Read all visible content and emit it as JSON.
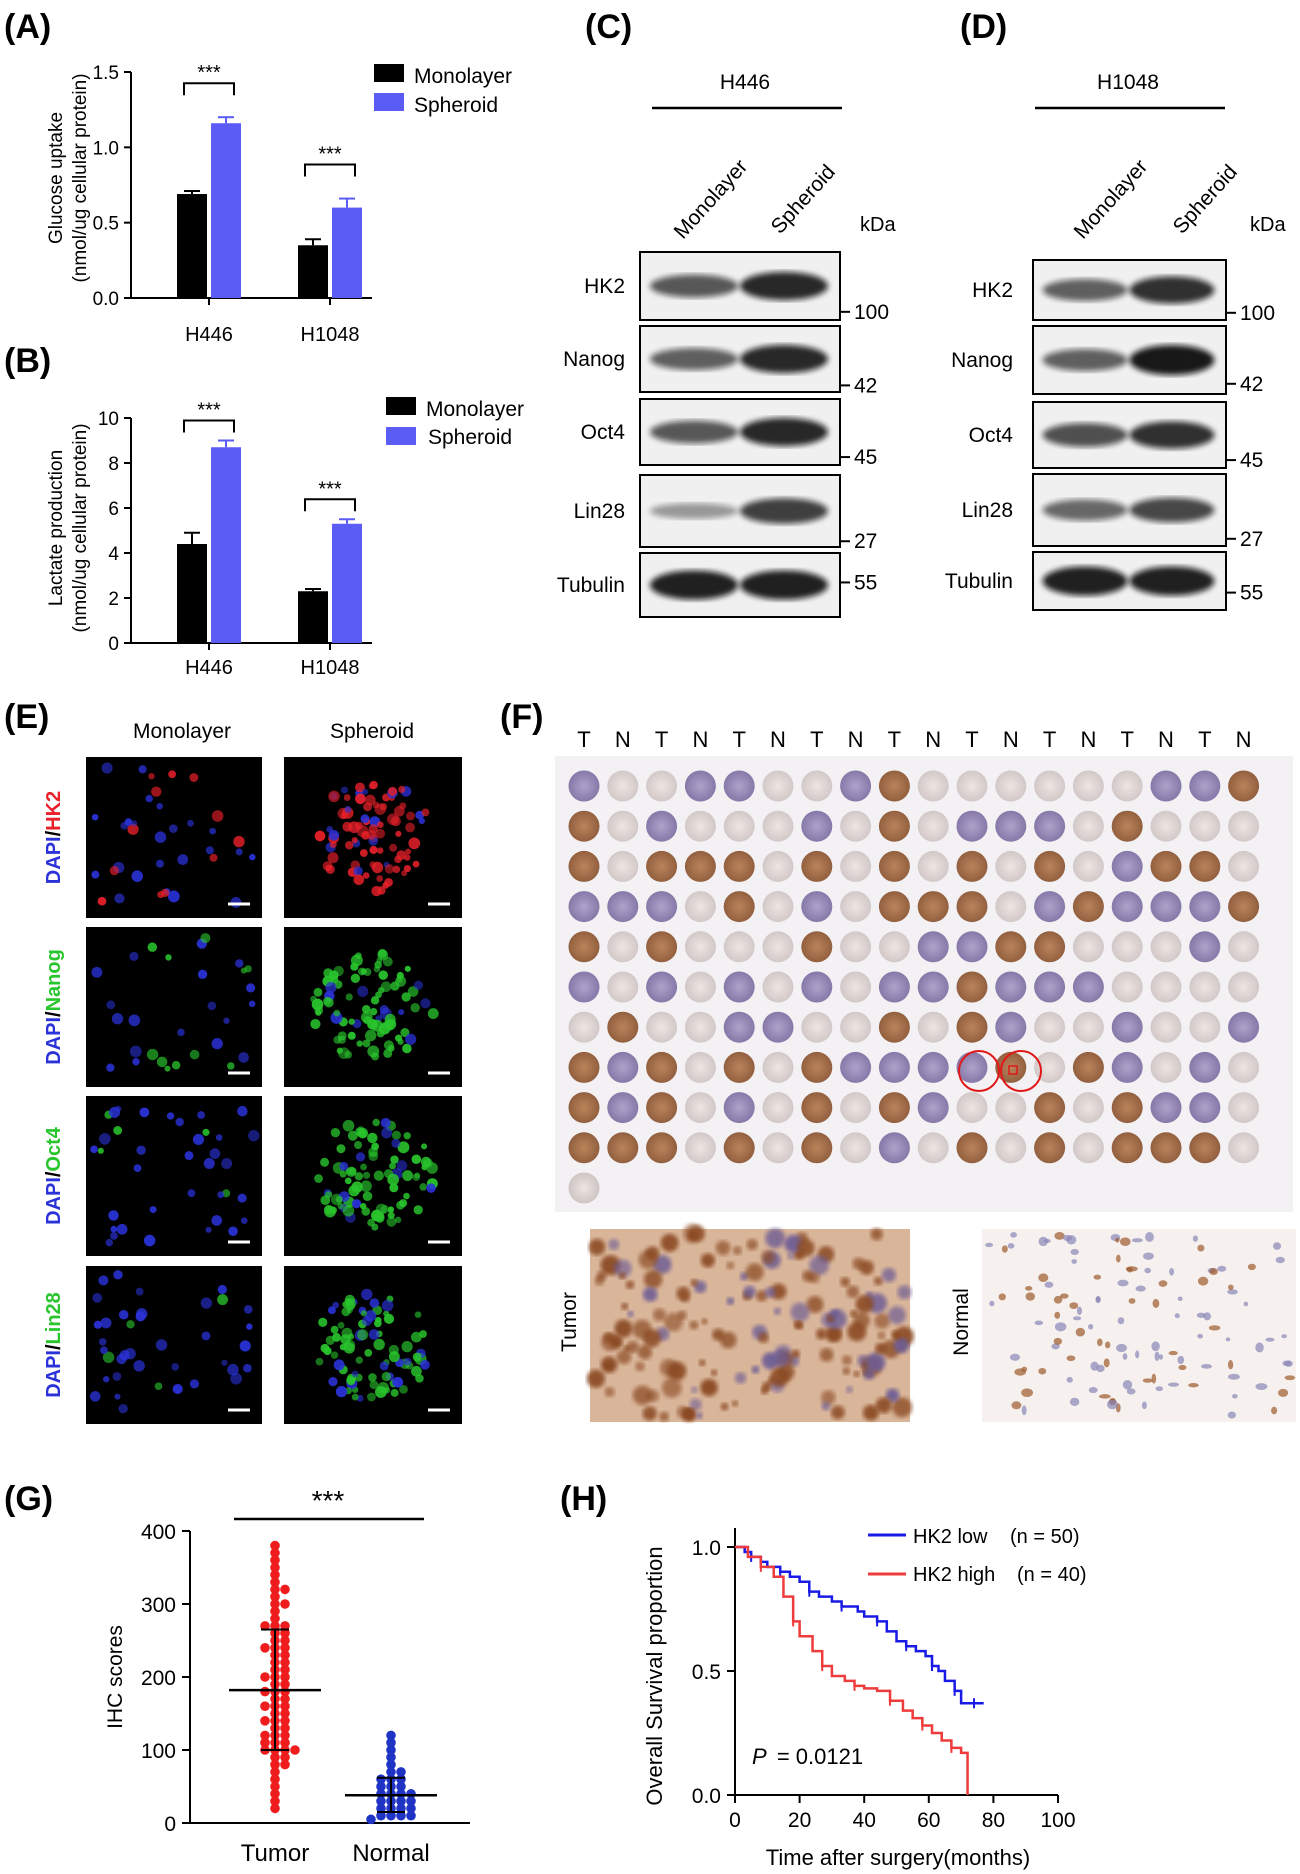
{
  "panels": {
    "A": "(A)",
    "B": "(B)",
    "C": "(C)",
    "D": "(D)",
    "E": "(E)",
    "F": "(F)",
    "G": "(G)",
    "H": "(H)"
  },
  "colors": {
    "monolayer": "#000000",
    "spheroid": "#5b5bf5",
    "tumor_dots": "#ee1c1c",
    "normal_dots": "#1f33c4",
    "hk2_low": "#1a1ae6",
    "hk2_high": "#ee3b3b",
    "tissue_brown": "#a0623a",
    "tissue_blue": "#8e84b4",
    "dapi": "#2a32d8",
    "hk2_stain": "#e8202a",
    "green_stain": "#29c52d"
  },
  "chart_data": [
    {
      "id": "A",
      "type": "bar",
      "categories": [
        "H446",
        "H1048"
      ],
      "series": [
        {
          "name": "Monolayer",
          "values": [
            0.69,
            0.35
          ],
          "errors": [
            0.02,
            0.04
          ]
        },
        {
          "name": "Spheroid",
          "values": [
            1.16,
            0.6
          ],
          "errors": [
            0.04,
            0.06
          ]
        }
      ],
      "ylabel": "Glucose uptake",
      "ylabel2": "(nmol/ug cellular protein)",
      "ylim": [
        0,
        1.5
      ],
      "yticks": [
        "0.0",
        "0.5",
        "1.0",
        "1.5"
      ],
      "significance": [
        "***",
        "***"
      ],
      "legend_position": "top-right"
    },
    {
      "id": "B",
      "type": "bar",
      "categories": [
        "H446",
        "H1048"
      ],
      "series": [
        {
          "name": "Monolayer",
          "values": [
            4.4,
            2.3
          ],
          "errors": [
            0.5,
            0.1
          ]
        },
        {
          "name": "Spheroid",
          "values": [
            8.7,
            5.3
          ],
          "errors": [
            0.3,
            0.2
          ]
        }
      ],
      "ylabel": "Lactate production",
      "ylabel2": "(nmol/ug cellular protein)",
      "ylim": [
        0,
        10
      ],
      "yticks": [
        "0",
        "2",
        "4",
        "6",
        "8",
        "10"
      ],
      "significance": [
        "***",
        "***"
      ],
      "legend_position": "top-right"
    },
    {
      "id": "G",
      "type": "scatter",
      "categories": [
        "Tumor",
        "Normal"
      ],
      "ylabel": "IHC scores",
      "ylim": [
        0,
        400
      ],
      "yticks": [
        "0",
        "100",
        "200",
        "300",
        "400"
      ],
      "summary": [
        {
          "group": "Tumor",
          "mean": 182,
          "sd_low": 100,
          "sd_high": 265
        },
        {
          "group": "Normal",
          "mean": 38,
          "sd_low": 15,
          "sd_high": 62
        }
      ],
      "points": [
        {
          "group": "Tumor",
          "values": [
            380,
            370,
            360,
            350,
            340,
            330,
            320,
            320,
            310,
            300,
            300,
            290,
            280,
            270,
            270,
            270,
            260,
            260,
            250,
            250,
            240,
            240,
            240,
            230,
            230,
            220,
            220,
            210,
            210,
            200,
            200,
            200,
            190,
            190,
            180,
            180,
            180,
            170,
            170,
            160,
            160,
            160,
            150,
            150,
            140,
            140,
            140,
            130,
            130,
            120,
            120,
            120,
            110,
            110,
            110,
            100,
            100,
            100,
            100,
            90,
            90,
            80,
            80,
            70,
            60,
            50,
            40,
            30,
            20
          ]
        },
        {
          "group": "Normal",
          "values": [
            120,
            110,
            100,
            90,
            80,
            70,
            70,
            60,
            60,
            60,
            50,
            50,
            50,
            40,
            40,
            40,
            40,
            30,
            30,
            30,
            30,
            20,
            20,
            20,
            20,
            10,
            10,
            10,
            10,
            5
          ]
        }
      ],
      "significance": "***"
    },
    {
      "id": "H",
      "type": "line",
      "xlabel": "Time after surgery(months)",
      "ylabel": "Overall Survival proportion",
      "xlim": [
        0,
        100
      ],
      "ylim": [
        0,
        1.0
      ],
      "xticks": [
        "0",
        "20",
        "40",
        "60",
        "80",
        "100"
      ],
      "yticks": [
        "0.0",
        "0.5",
        "1.0"
      ],
      "series": [
        {
          "name": "HK2 low",
          "n_label": "(n = 50)",
          "x": [
            0,
            3,
            5,
            8,
            10,
            14,
            17,
            20,
            23,
            26,
            30,
            33,
            38,
            40,
            44,
            47,
            50,
            53,
            56,
            59,
            61,
            63,
            65,
            68,
            70,
            72,
            74,
            77
          ],
          "y": [
            1.0,
            0.98,
            0.96,
            0.94,
            0.92,
            0.9,
            0.88,
            0.86,
            0.82,
            0.8,
            0.78,
            0.76,
            0.74,
            0.72,
            0.7,
            0.66,
            0.62,
            0.6,
            0.58,
            0.56,
            0.52,
            0.5,
            0.46,
            0.42,
            0.37,
            0.37,
            0.37,
            0.37
          ]
        },
        {
          "name": "HK2 high",
          "n_label": "(n = 40)",
          "x": [
            0,
            4,
            8,
            12,
            15,
            18,
            20,
            24,
            27,
            30,
            34,
            37,
            40,
            44,
            48,
            52,
            55,
            58,
            61,
            64,
            67,
            70,
            72,
            72
          ],
          "y": [
            1.0,
            0.96,
            0.92,
            0.88,
            0.8,
            0.7,
            0.64,
            0.58,
            0.52,
            0.48,
            0.46,
            0.44,
            0.43,
            0.42,
            0.38,
            0.34,
            0.31,
            0.28,
            0.25,
            0.22,
            0.19,
            0.17,
            0.17,
            0.0
          ]
        }
      ],
      "annotation": {
        "p_label": "P",
        "p_value": "= 0.0121"
      },
      "legend_position": "top-right"
    }
  ],
  "blots": {
    "C": {
      "cell_line": "H446",
      "lanes": [
        "Monolayer",
        "Spheroid"
      ],
      "kda_label": "kDa",
      "rows": [
        {
          "label": "HK2",
          "kda": "100"
        },
        {
          "label": "Nanog",
          "kda": "42"
        },
        {
          "label": "Oct4",
          "kda": "45"
        },
        {
          "label": "Lin28",
          "kda": "27"
        },
        {
          "label": "Tubulin",
          "kda": "55"
        }
      ]
    },
    "D": {
      "cell_line": "H1048",
      "lanes": [
        "Monolayer",
        "Spheroid"
      ],
      "kda_label": "kDa",
      "rows": [
        {
          "label": "HK2",
          "kda": "100"
        },
        {
          "label": "Nanog",
          "kda": "42"
        },
        {
          "label": "Oct4",
          "kda": "45"
        },
        {
          "label": "Lin28",
          "kda": "27"
        },
        {
          "label": "Tubulin",
          "kda": "55"
        }
      ]
    }
  },
  "immuno": {
    "columns": [
      "Monolayer",
      "Spheroid"
    ],
    "rows": [
      {
        "dapi": "DAPI",
        "marker": "HK2"
      },
      {
        "dapi": "DAPI",
        "marker": "Nanog"
      },
      {
        "dapi": "DAPI",
        "marker": "Oct4"
      },
      {
        "dapi": "DAPI",
        "marker": "Lin28"
      }
    ]
  },
  "tma": {
    "column_labels": [
      "T",
      "N",
      "T",
      "N",
      "T",
      "N",
      "T",
      "N",
      "T",
      "N",
      "T",
      "N",
      "T",
      "N",
      "T",
      "N",
      "T",
      "N"
    ],
    "rows": 10,
    "cols": 18,
    "tumor_label": "Tumor",
    "normal_label": "Normal"
  }
}
